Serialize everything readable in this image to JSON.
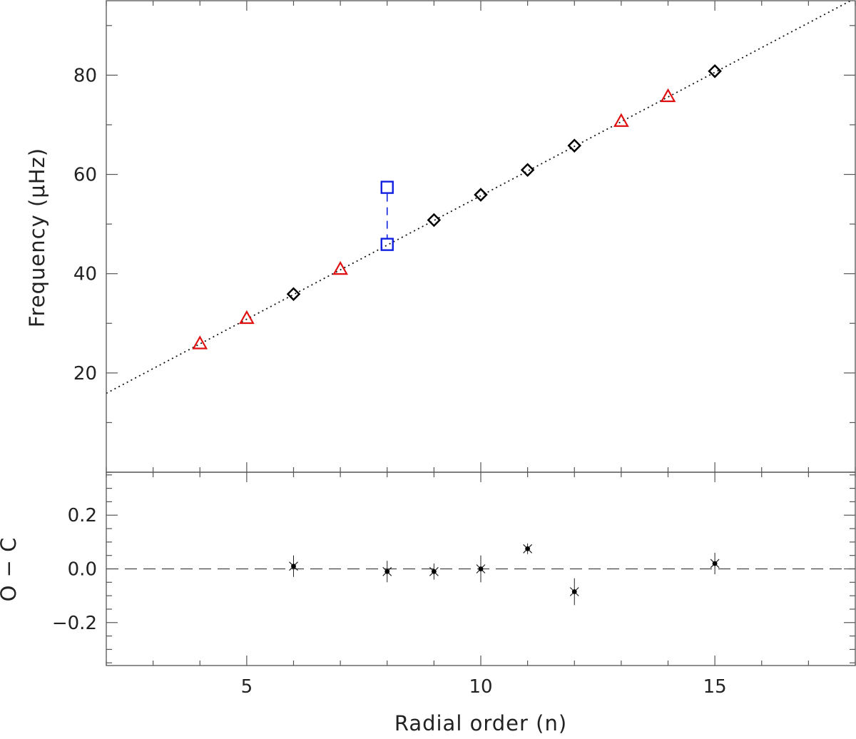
{
  "chart_data": [
    {
      "type": "scatter",
      "ylabel": "Frequency (μHz)",
      "xlim": [
        2,
        18
      ],
      "ylim": [
        0,
        95
      ],
      "major_yticks": [
        20,
        40,
        60,
        80
      ],
      "minor_ytick_step": 10,
      "x_major_ticks": [
        5,
        10,
        15
      ],
      "fit_line": {
        "style": "dotted",
        "x": [
          2,
          18
        ],
        "y": [
          15.9,
          95.5
        ]
      },
      "series": [
        {
          "marker": "triangle",
          "color": "#e01010",
          "x": [
            4,
            5,
            7,
            13,
            14
          ],
          "y": [
            25.8,
            30.9,
            40.8,
            70.6,
            75.6
          ]
        },
        {
          "marker": "diamond",
          "color": "#000000",
          "x": [
            6,
            9,
            10,
            11,
            12,
            15
          ],
          "y": [
            35.9,
            50.8,
            55.9,
            60.9,
            65.8,
            80.8
          ]
        },
        {
          "marker": "square",
          "color": "#1020e0",
          "x": [
            8,
            8
          ],
          "y": [
            57.4,
            45.9
          ],
          "connector": "dashed"
        }
      ]
    },
    {
      "type": "scatter",
      "xlabel": "Radial order (n)",
      "ylabel": "O − C",
      "xlim": [
        2,
        18
      ],
      "ylim": [
        -0.36,
        0.36
      ],
      "major_yticks": [
        -0.2,
        0.0,
        0.2
      ],
      "major_ytick_labels": [
        "−0.2",
        "0.0",
        "0.2"
      ],
      "minor_ytick_step": 0.05,
      "x_major_ticks": [
        5,
        10,
        15
      ],
      "reference_line": {
        "y": 0,
        "style": "dashed"
      },
      "points": [
        {
          "x": 6,
          "y": 0.01,
          "err": 0.04
        },
        {
          "x": 8,
          "y": -0.01,
          "err": 0.04
        },
        {
          "x": 9,
          "y": -0.01,
          "err": 0.03
        },
        {
          "x": 10,
          "y": 0.0,
          "err": 0.05
        },
        {
          "x": 11,
          "y": 0.075,
          "err": 0.02
        },
        {
          "x": 12,
          "y": -0.085,
          "err": 0.05
        },
        {
          "x": 15,
          "y": 0.02,
          "err": 0.04
        }
      ]
    }
  ]
}
